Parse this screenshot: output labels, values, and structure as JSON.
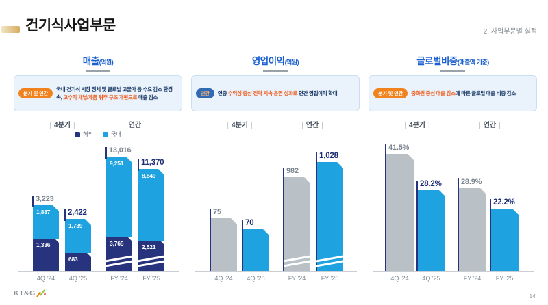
{
  "slide": {
    "title": "건기식사업부문",
    "breadcrumb": "2. 사업부문별 실적",
    "page_number": "14",
    "logo_text": "KT&G"
  },
  "colors": {
    "section_title_blue": "#1a5fd0",
    "bar_navy": "#27347d",
    "bar_blue": "#1fa3e0",
    "bar_gray": "#b9c0c6",
    "highlight_orange": "#ee5a1c",
    "badge_orange": "#f0831e",
    "badge_blue": "#2f6ab2",
    "total_gray": "#7c8690",
    "total_navy": "#1c2e75",
    "gold_accent": "#d5ac5f"
  },
  "sections": [
    {
      "title": "매출",
      "title_unit": "(억원)",
      "badge": "분기 및 연간",
      "badge_color": "orange",
      "callout_parts": [
        {
          "text": "국내 건기식 시장 정체 및 글로벌 고물가 등 수요 감소 환경 속, ",
          "highlight": false
        },
        {
          "text": "고수익 채널/제품 위주 구조 개편으로",
          "highlight": true
        },
        {
          "text": " 매출 감소",
          "highlight": false
        }
      ],
      "group_labels": [
        "4분기",
        "연간"
      ],
      "legend": [
        {
          "label": "해외",
          "color": "#27347d"
        },
        {
          "label": "국내",
          "color": "#1fa3e0"
        }
      ]
    },
    {
      "title": "영업이익",
      "title_unit": "(억원)",
      "badge": "연간",
      "badge_color": "blue",
      "callout_parts": [
        {
          "text": "연중 ",
          "highlight": false
        },
        {
          "text": "수익성 중심 전략 지속 운영 성과로",
          "highlight": true
        },
        {
          "text": " 연간 영업이익 확대",
          "highlight": false
        }
      ],
      "group_labels": [
        "4분기",
        "연간"
      ],
      "legend": null
    },
    {
      "title": "글로벌비중",
      "title_unit": "(매출액 기준)",
      "badge": "분기 및 연간",
      "badge_color": "orange",
      "callout_parts": [
        {
          "text": "중화권 중심 매출 감소",
          "highlight": true
        },
        {
          "text": "에 따른 글로벌 매출 비중 감소",
          "highlight": false
        }
      ],
      "group_labels": [
        "4분기",
        "연간"
      ],
      "legend": null
    }
  ],
  "chart_data": [
    {
      "type": "bar",
      "stacked": true,
      "title": "매출",
      "ylabel": "억원",
      "categories": [
        "4Q '24",
        "4Q '25",
        "FY '24",
        "FY '25"
      ],
      "series": [
        {
          "name": "해외",
          "color": "#27347d",
          "values": [
            1336,
            683,
            3765,
            2521
          ],
          "labels": [
            "1,336",
            "683",
            "3,765",
            "2,521"
          ]
        },
        {
          "name": "국내",
          "color": "#1fa3e0",
          "values": [
            1887,
            1739,
            9251,
            8849
          ],
          "labels": [
            "1,887",
            "1,739",
            "9,251",
            "8,849"
          ]
        }
      ],
      "totals": [
        3223,
        2422,
        13016,
        11370
      ],
      "total_labels": [
        "3,223",
        "2,422",
        "13,016",
        "11,370"
      ],
      "emphasis": [
        false,
        true,
        false,
        true
      ],
      "axis_break": [
        false,
        false,
        true,
        true
      ],
      "legend_position": "top",
      "grid": false
    },
    {
      "type": "bar",
      "stacked": false,
      "title": "영업이익",
      "ylabel": "억원",
      "categories": [
        "4Q '24",
        "4Q '25",
        "FY '24",
        "FY '25"
      ],
      "values": [
        75,
        70,
        982,
        1028
      ],
      "value_labels": [
        "75",
        "70",
        "982",
        "1,028"
      ],
      "bar_colors": [
        "gray",
        "blue",
        "gray",
        "blue"
      ],
      "emphasis": [
        false,
        true,
        false,
        true
      ],
      "axis_break": [
        false,
        false,
        true,
        true
      ],
      "grid": false
    },
    {
      "type": "bar",
      "stacked": false,
      "title": "글로벌비중",
      "ylabel": "%",
      "categories": [
        "4Q '24",
        "4Q '25",
        "FY '24",
        "FY '25"
      ],
      "values": [
        41.5,
        28.2,
        28.9,
        22.2
      ],
      "value_labels": [
        "41.5%",
        "28.2%",
        "28.9%",
        "22.2%"
      ],
      "bar_colors": [
        "gray",
        "blue",
        "gray",
        "blue"
      ],
      "emphasis": [
        false,
        true,
        false,
        true
      ],
      "axis_break": [
        false,
        false,
        false,
        false
      ],
      "grid": false
    }
  ]
}
